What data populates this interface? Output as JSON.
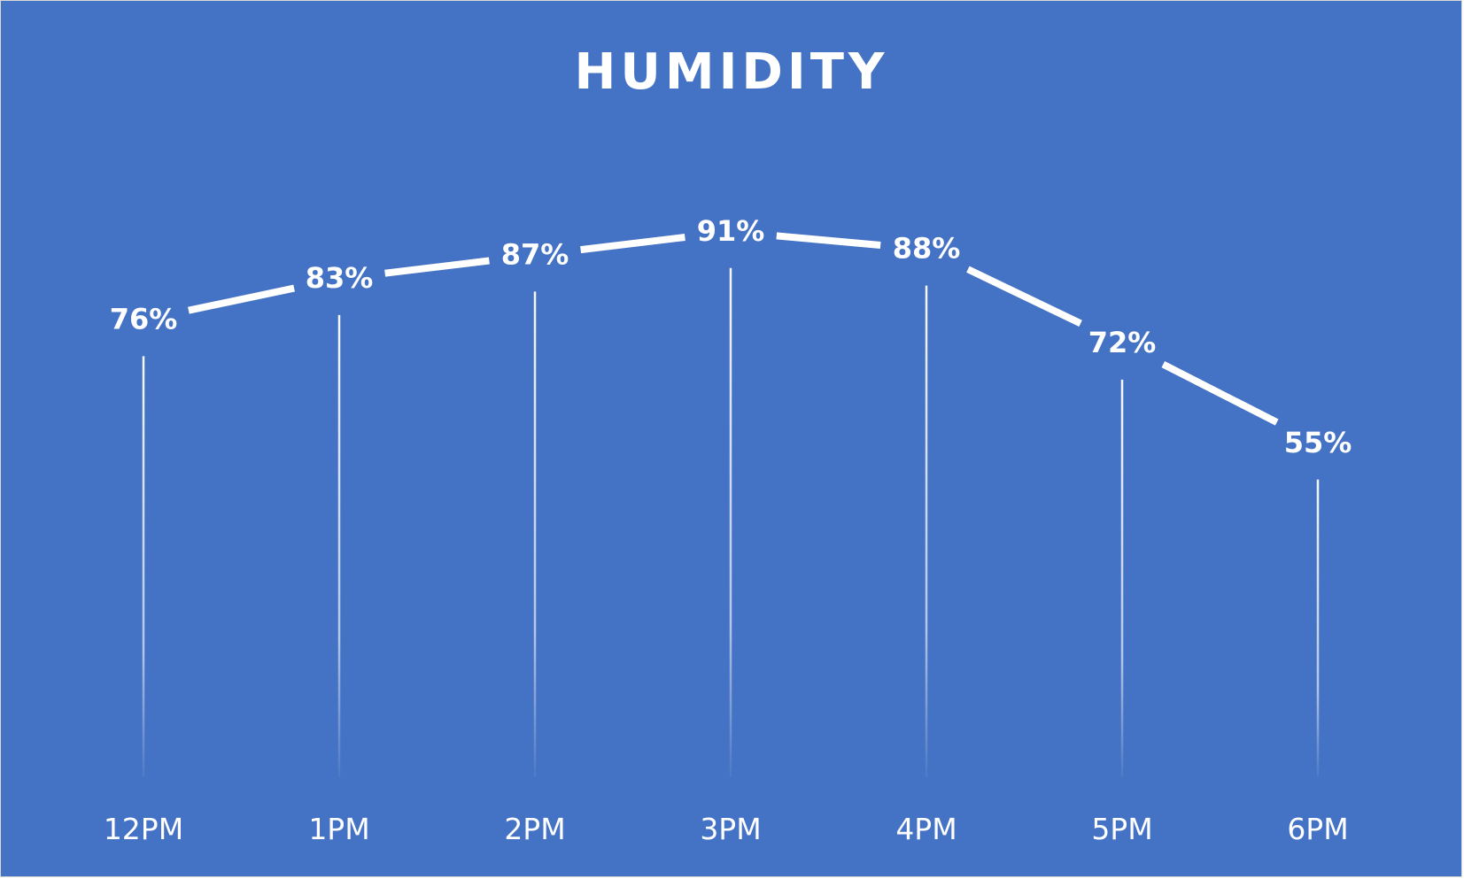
{
  "chart_data": {
    "type": "line",
    "title": "HUMIDITY",
    "xlabel": "",
    "ylabel": "",
    "categories": [
      "12PM",
      "1PM",
      "2PM",
      "3PM",
      "4PM",
      "5PM",
      "6PM"
    ],
    "series": [
      {
        "values": [
          76,
          83,
          87,
          91,
          88,
          72,
          55
        ],
        "data_labels": [
          "76%",
          "83%",
          "87%",
          "91%",
          "88%",
          "72%",
          "55%"
        ]
      }
    ],
    "ylim": [
      0,
      100
    ],
    "grid": false,
    "legend": "none",
    "drop_lines": true
  },
  "colors": {
    "background": "#4472c4",
    "line": "#ffffff",
    "text": "#ffffff",
    "drop_line": "#ffffff"
  }
}
